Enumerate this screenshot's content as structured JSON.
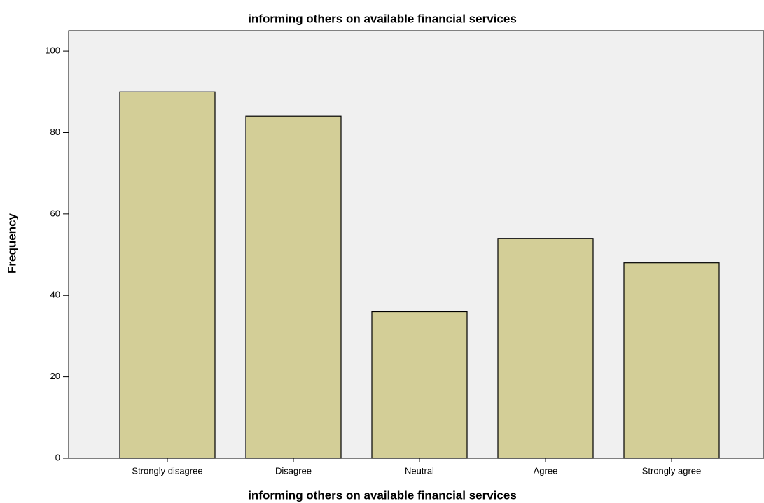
{
  "chart_data": {
    "type": "bar",
    "title": "informing others on available financial services",
    "x_label": "informing others on available financial services",
    "y_label": "Frequency",
    "categories": [
      "Strongly disagree",
      "Disagree",
      "Neutral",
      "Agree",
      "Strongly agree"
    ],
    "values": [
      90,
      84,
      36,
      54,
      48
    ],
    "color": "#d3ce97",
    "ylim": [
      0,
      105
    ],
    "yticks": [
      0,
      20,
      40,
      60,
      80,
      100
    ],
    "grid": false
  }
}
